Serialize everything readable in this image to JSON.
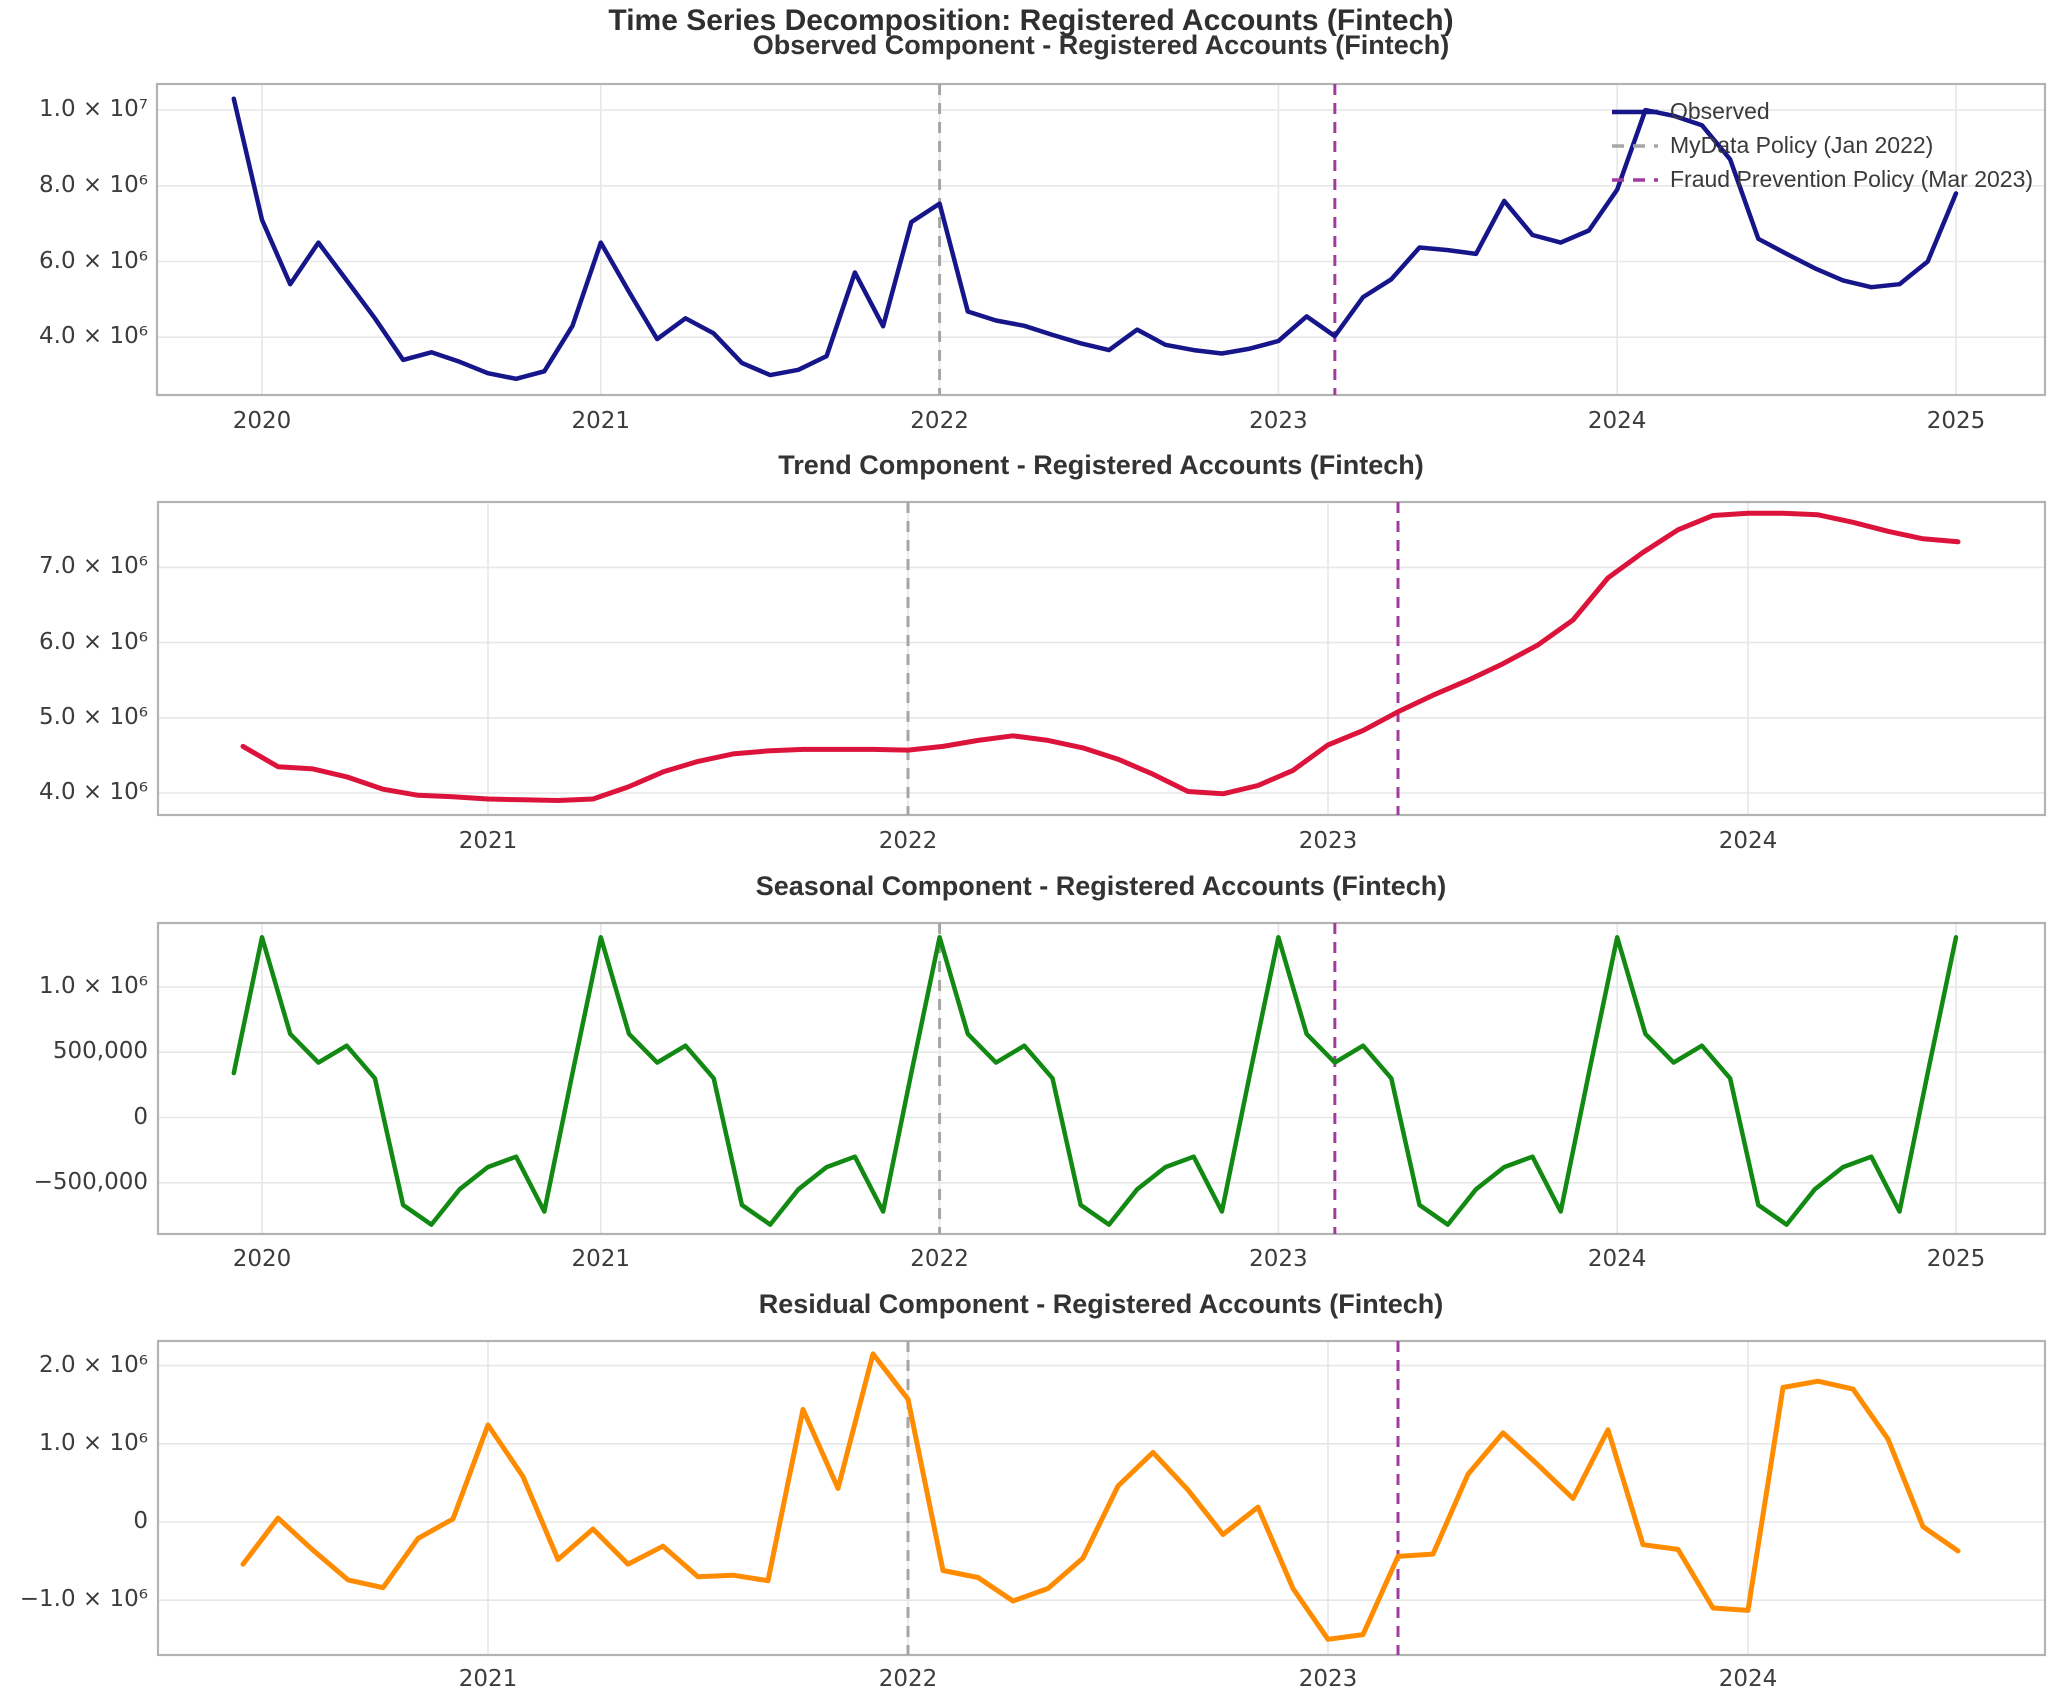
{
  "page_title": "Time Series Decomposition: Registered Accounts (Fintech)",
  "colors": {
    "observed": "#16168a",
    "trend": "#dc143c",
    "seasonal": "#128912",
    "residual": "#ff8c00",
    "event_mydata": "#a6a6a6",
    "event_fraud": "#a03ca0",
    "grid": "#e7e7e7",
    "spine": "#b3b3b3",
    "text": "#3c3c3c"
  },
  "legend": {
    "items": [
      {
        "label": "Observed",
        "color": "#16168a",
        "style": "solid"
      },
      {
        "label": "MyData Policy (Jan 2022)",
        "color": "#a6a6a6",
        "style": "dashed"
      },
      {
        "label": "Fraud Prevention Policy (Mar 2023)",
        "color": "#a03ca0",
        "style": "dashed"
      }
    ]
  },
  "chart_data": [
    {
      "type": "line",
      "panel": "observed",
      "title": "Observed Component - Registered Accounts (Fintech)",
      "x_start": "2019-12",
      "freq": "monthly",
      "x_ticks": [
        "2020",
        "2021",
        "2022",
        "2023",
        "2024",
        "2025"
      ],
      "y_ticks": [
        "1.0 × 10⁷",
        "8.0 × 10⁶",
        "6.0 × 10⁶",
        "4.0 × 10⁶"
      ],
      "y_tick_values_millions": [
        10,
        8,
        6,
        4
      ],
      "legend_visible": true,
      "events": [
        {
          "label": "MyData Policy (Jan 2022)",
          "date": "2022-01"
        },
        {
          "label": "Fraud Prevention Policy (Mar 2023)",
          "date": "2023-03"
        }
      ],
      "series": [
        {
          "name": "Observed",
          "unit": "accounts",
          "values_millions": [
            10.3,
            7.1,
            5.4,
            6.5,
            5.5,
            4.5,
            3.4,
            3.6,
            3.35,
            3.05,
            2.9,
            3.1,
            4.3,
            6.5,
            5.2,
            3.95,
            4.5,
            4.1,
            3.32,
            3.0,
            3.14,
            3.5,
            5.71,
            4.29,
            7.04,
            7.53,
            4.68,
            4.44,
            4.3,
            4.06,
            3.84,
            3.66,
            4.2,
            3.8,
            3.66,
            3.57,
            3.7,
            3.9,
            4.55,
            4.03,
            5.06,
            5.53,
            6.37,
            6.3,
            6.2,
            7.6,
            6.7,
            6.5,
            6.82,
            7.9,
            10.0,
            9.85,
            9.6,
            8.7,
            6.6,
            6.2,
            5.82,
            5.5,
            5.32,
            5.4,
            6.0,
            7.8
          ]
        }
      ]
    },
    {
      "type": "line",
      "panel": "trend",
      "title": "Trend Component - Registered Accounts (Fintech)",
      "x_start": "2020-06",
      "freq": "monthly",
      "x_ticks": [
        "2021",
        "2022",
        "2023",
        "2024"
      ],
      "y_ticks": [
        "7.0 × 10⁶",
        "6.0 × 10⁶",
        "5.0 × 10⁶",
        "4.0 × 10⁶"
      ],
      "y_tick_values_millions": [
        7,
        6,
        5,
        4
      ],
      "legend_visible": false,
      "events": [
        {
          "label": "MyData Policy (Jan 2022)",
          "date": "2022-01"
        },
        {
          "label": "Fraud Prevention Policy (Mar 2023)",
          "date": "2023-03"
        }
      ],
      "series": [
        {
          "name": "Trend",
          "unit": "accounts",
          "values_millions": [
            4.62,
            4.35,
            4.32,
            4.21,
            4.05,
            3.97,
            3.95,
            3.92,
            3.91,
            3.9,
            3.92,
            4.08,
            4.28,
            4.42,
            4.52,
            4.56,
            4.58,
            4.58,
            4.58,
            4.57,
            4.62,
            4.7,
            4.76,
            4.7,
            4.6,
            4.45,
            4.25,
            4.02,
            3.99,
            4.1,
            4.3,
            4.64,
            4.83,
            5.08,
            5.3,
            5.5,
            5.72,
            5.97,
            6.3,
            6.86,
            7.2,
            7.5,
            7.69,
            7.72,
            7.72,
            7.7,
            7.6,
            7.48,
            7.38,
            7.34
          ]
        }
      ]
    },
    {
      "type": "line",
      "panel": "seasonal",
      "title": "Seasonal Component - Registered Accounts (Fintech)",
      "x_start": "2019-12",
      "freq": "monthly",
      "x_ticks": [
        "2020",
        "2021",
        "2022",
        "2023",
        "2024",
        "2025"
      ],
      "y_ticks": [
        "1.0 × 10⁶",
        "500,000",
        "0",
        "−500,000"
      ],
      "y_tick_values_millions": [
        1,
        0.5,
        0,
        -0.5
      ],
      "legend_visible": false,
      "events": [
        {
          "label": "MyData Policy (Jan 2022)",
          "date": "2022-01"
        },
        {
          "label": "Fraud Prevention Policy (Mar 2023)",
          "date": "2023-03"
        }
      ],
      "seasonal_pattern_jan_to_dec_millions": [
        1.38,
        0.64,
        0.42,
        0.55,
        0.3,
        -0.67,
        -0.82,
        -0.55,
        -0.38,
        -0.3,
        -0.72,
        0.34
      ],
      "series": [
        {
          "name": "Seasonal",
          "unit": "accounts",
          "values_millions": [
            0.34,
            1.38,
            0.64,
            0.42,
            0.55,
            0.3,
            -0.67,
            -0.82,
            -0.55,
            -0.38,
            -0.3,
            -0.72,
            0.34,
            1.38,
            0.64,
            0.42,
            0.55,
            0.3,
            -0.67,
            -0.82,
            -0.55,
            -0.38,
            -0.3,
            -0.72,
            0.34,
            1.38,
            0.64,
            0.42,
            0.55,
            0.3,
            -0.67,
            -0.82,
            -0.55,
            -0.38,
            -0.3,
            -0.72,
            0.34,
            1.38,
            0.64,
            0.42,
            0.55,
            0.3,
            -0.67,
            -0.82,
            -0.55,
            -0.38,
            -0.3,
            -0.72,
            0.34,
            1.38,
            0.64,
            0.42,
            0.55,
            0.3,
            -0.67,
            -0.82,
            -0.55,
            -0.38,
            -0.3,
            -0.72,
            0.34,
            1.38
          ]
        }
      ]
    },
    {
      "type": "line",
      "panel": "residual",
      "title": "Residual Component - Registered Accounts (Fintech)",
      "x_start": "2020-06",
      "freq": "monthly",
      "x_ticks": [
        "2021",
        "2022",
        "2023",
        "2024"
      ],
      "y_ticks": [
        "2.0 × 10⁶",
        "1.0 × 10⁶",
        "0",
        "−1.0 × 10⁶"
      ],
      "y_tick_values_millions": [
        2,
        1,
        0,
        -1
      ],
      "legend_visible": false,
      "events": [
        {
          "label": "MyData Policy (Jan 2022)",
          "date": "2022-01"
        },
        {
          "label": "Fraud Prevention Policy (Mar 2023)",
          "date": "2023-03"
        }
      ],
      "series": [
        {
          "name": "Residual",
          "unit": "accounts",
          "values_millions": [
            -0.54,
            0.05,
            -0.36,
            -0.74,
            -0.84,
            -0.21,
            0.04,
            1.24,
            0.58,
            -0.48,
            -0.09,
            -0.54,
            -0.31,
            -0.7,
            -0.68,
            -0.75,
            1.44,
            0.43,
            2.15,
            1.57,
            -0.62,
            -0.71,
            -1.01,
            -0.85,
            -0.46,
            0.46,
            0.89,
            0.41,
            -0.16,
            0.19,
            -0.85,
            -1.5,
            -1.44,
            -0.44,
            -0.41,
            0.61,
            1.14,
            0.73,
            0.3,
            1.18,
            -0.29,
            -0.35,
            -1.1,
            -1.13,
            1.72,
            1.8,
            1.7,
            1.06,
            -0.06,
            -0.37
          ]
        }
      ]
    }
  ]
}
